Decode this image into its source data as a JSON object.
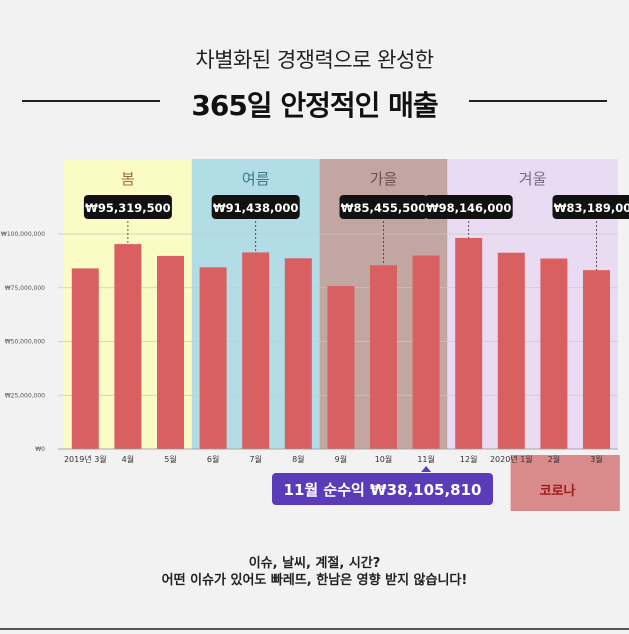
{
  "header": {
    "subtitle": "차별화된 경쟁력으로 완성한",
    "title": "365일 안정적인 매출"
  },
  "chart_data": {
    "type": "bar",
    "categories": [
      "2019년 3월",
      "4월",
      "5월",
      "6월",
      "7월",
      "8월",
      "9월",
      "10월",
      "11월",
      "12월",
      "2020년 1월",
      "2월",
      "3월"
    ],
    "values": [
      84000000,
      95319500,
      89800000,
      84500000,
      91438000,
      88700000,
      75800000,
      85455500,
      90000000,
      98146000,
      91300000,
      88600000,
      83189000
    ],
    "ylim": [
      0,
      120000000
    ],
    "yticks": [
      0,
      25000000,
      50000000,
      75000000,
      100000000
    ],
    "ytick_labels": [
      "₩0",
      "₩25,000,000",
      "₩50,000,000",
      "₩75,000,000",
      "₩100,000,000"
    ],
    "grid": true,
    "bar_color": "#d96060",
    "seasons": [
      {
        "label": "봄",
        "start": 0,
        "end": 3,
        "color": "#fbfbc6",
        "text_color": "#a0703a"
      },
      {
        "label": "여름",
        "start": 3,
        "end": 6,
        "color": "#b2dde6",
        "text_color": "#3b7d86"
      },
      {
        "label": "가을",
        "start": 6,
        "end": 9,
        "color": "#c2a6a2",
        "text_color": "#6e4f4a"
      },
      {
        "label": "겨울",
        "start": 9,
        "end": 13,
        "color": "#e9dcf2",
        "text_color": "#7a6a8a"
      }
    ],
    "callouts": [
      {
        "index": 1,
        "label": "₩95,319,500"
      },
      {
        "index": 4,
        "label": "₩91,438,000"
      },
      {
        "index": 7,
        "label": "₩85,455,500"
      },
      {
        "index": 9,
        "label": "₩98,146,000"
      },
      {
        "index": 12,
        "label": "₩83,189,000"
      }
    ],
    "highlight": {
      "index": 8,
      "label": "11월 순수익 ₩38,105,810",
      "color": "#5a3bb8"
    },
    "covid": {
      "start": 11,
      "label": "코로나",
      "color": "#d98a8a",
      "text_color": "#a01a1a"
    }
  },
  "footer": {
    "line1": "이슈, 날씨, 계절, 시간?",
    "line2": "어떤 이슈가 있어도 빠레뜨, 한남은 영향 받지 않습니다!"
  }
}
